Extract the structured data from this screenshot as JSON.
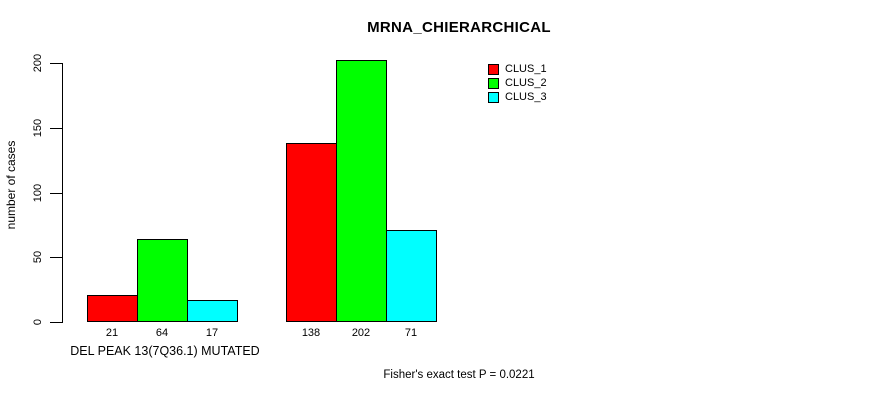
{
  "chart_data": {
    "type": "bar",
    "title": "MRNA_CHIERARCHICAL",
    "ylabel": "number of cases",
    "xlabel": "",
    "ylim": [
      0,
      200
    ],
    "yticks": [
      0,
      50,
      100,
      150,
      200
    ],
    "grid": false,
    "legend_position": "top-right",
    "series": [
      {
        "name": "CLUS_1",
        "color": "#ff0000"
      },
      {
        "name": "CLUS_2",
        "color": "#00ff00"
      },
      {
        "name": "CLUS_3",
        "color": "#00ffff"
      }
    ],
    "groups": [
      {
        "label": "DEL PEAK 13(7Q36.1) MUTATED",
        "values": [
          21,
          64,
          17
        ]
      },
      {
        "label": "",
        "values": [
          138,
          202,
          71
        ]
      }
    ],
    "bar_border_color": "#000000",
    "background_color": "#ffffff",
    "annotation": "Fisher's exact test P = 0.0221"
  }
}
